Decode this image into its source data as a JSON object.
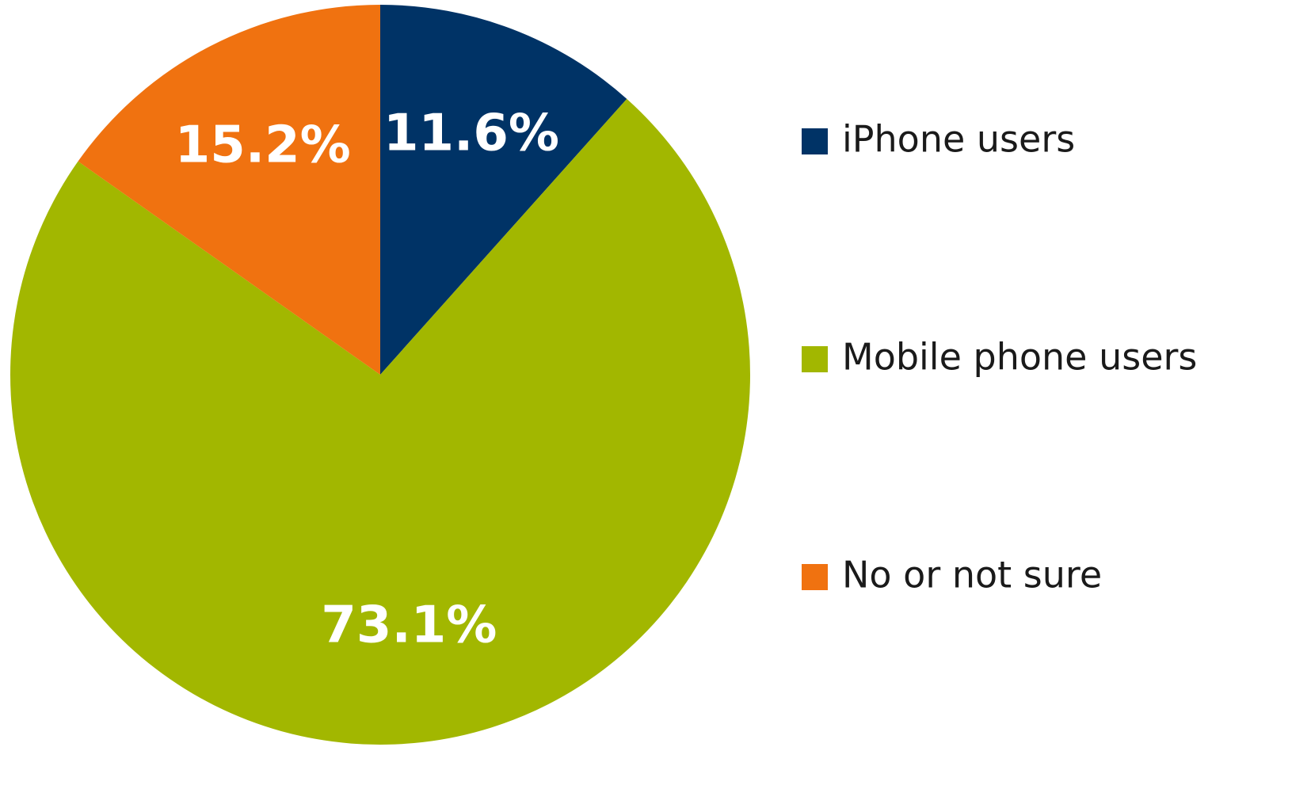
{
  "chart_data": {
    "type": "pie",
    "categories": [
      "iPhone users",
      "Mobile phone users",
      "No or not sure"
    ],
    "values": [
      11.6,
      73.1,
      15.2
    ],
    "value_labels": [
      "11.6%",
      "73.1%",
      "15.2%"
    ],
    "colors": [
      "#003366",
      "#a2b700",
      "#f07210"
    ],
    "legend": "right"
  }
}
